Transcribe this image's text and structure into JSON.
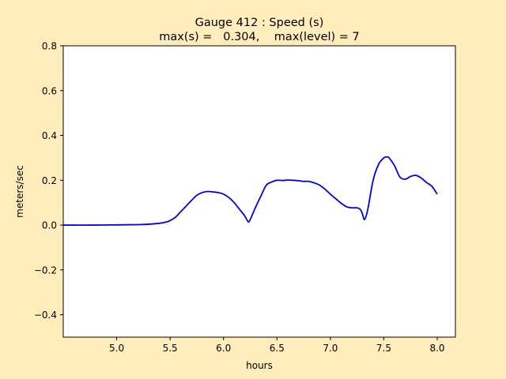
{
  "chart_data": {
    "type": "line",
    "title_line1": "Gauge 412 : Speed (s)",
    "title_line2": "max(s) =   0.304,    max(level) = 7",
    "xlabel": "hours",
    "ylabel": "meters/sec",
    "xlim": [
      4.5,
      8.17
    ],
    "ylim": [
      -0.5,
      0.8
    ],
    "xticks": [
      5.0,
      5.5,
      6.0,
      6.5,
      7.0,
      7.5,
      8.0
    ],
    "xtick_labels": [
      "5.0",
      "5.5",
      "6.0",
      "6.5",
      "7.0",
      "7.5",
      "8.0"
    ],
    "yticks": [
      -0.4,
      -0.2,
      0.0,
      0.2,
      0.4,
      0.6,
      0.8
    ],
    "ytick_labels": [
      "−0.4",
      "−0.2",
      "0.0",
      "0.2",
      "0.4",
      "0.6",
      "0.8"
    ],
    "grid": false,
    "series": [
      {
        "color": "#0000ee",
        "x": [
          4.5,
          4.8,
          5.0,
          5.2,
          5.3,
          5.4,
          5.45,
          5.5,
          5.55,
          5.6,
          5.65,
          5.7,
          5.75,
          5.8,
          5.85,
          5.9,
          5.95,
          6.0,
          6.05,
          6.1,
          6.15,
          6.2,
          6.23,
          6.25,
          6.3,
          6.35,
          6.4,
          6.45,
          6.5,
          6.55,
          6.6,
          6.65,
          6.7,
          6.75,
          6.8,
          6.85,
          6.9,
          6.95,
          7.0,
          7.05,
          7.1,
          7.15,
          7.2,
          7.25,
          7.28,
          7.3,
          7.32,
          7.35,
          7.4,
          7.45,
          7.5,
          7.53,
          7.55,
          7.6,
          7.65,
          7.7,
          7.75,
          7.8,
          7.85,
          7.9,
          7.95,
          8.0
        ],
        "y": [
          0.0,
          0.0,
          0.001,
          0.002,
          0.004,
          0.008,
          0.012,
          0.02,
          0.035,
          0.06,
          0.085,
          0.11,
          0.133,
          0.145,
          0.15,
          0.148,
          0.145,
          0.138,
          0.123,
          0.1,
          0.07,
          0.04,
          0.015,
          0.025,
          0.08,
          0.13,
          0.178,
          0.192,
          0.2,
          0.199,
          0.201,
          0.2,
          0.198,
          0.195,
          0.195,
          0.188,
          0.178,
          0.16,
          0.138,
          0.118,
          0.098,
          0.082,
          0.077,
          0.077,
          0.07,
          0.05,
          0.025,
          0.07,
          0.2,
          0.27,
          0.3,
          0.304,
          0.3,
          0.265,
          0.215,
          0.205,
          0.217,
          0.222,
          0.21,
          0.19,
          0.173,
          0.138
        ]
      }
    ]
  }
}
